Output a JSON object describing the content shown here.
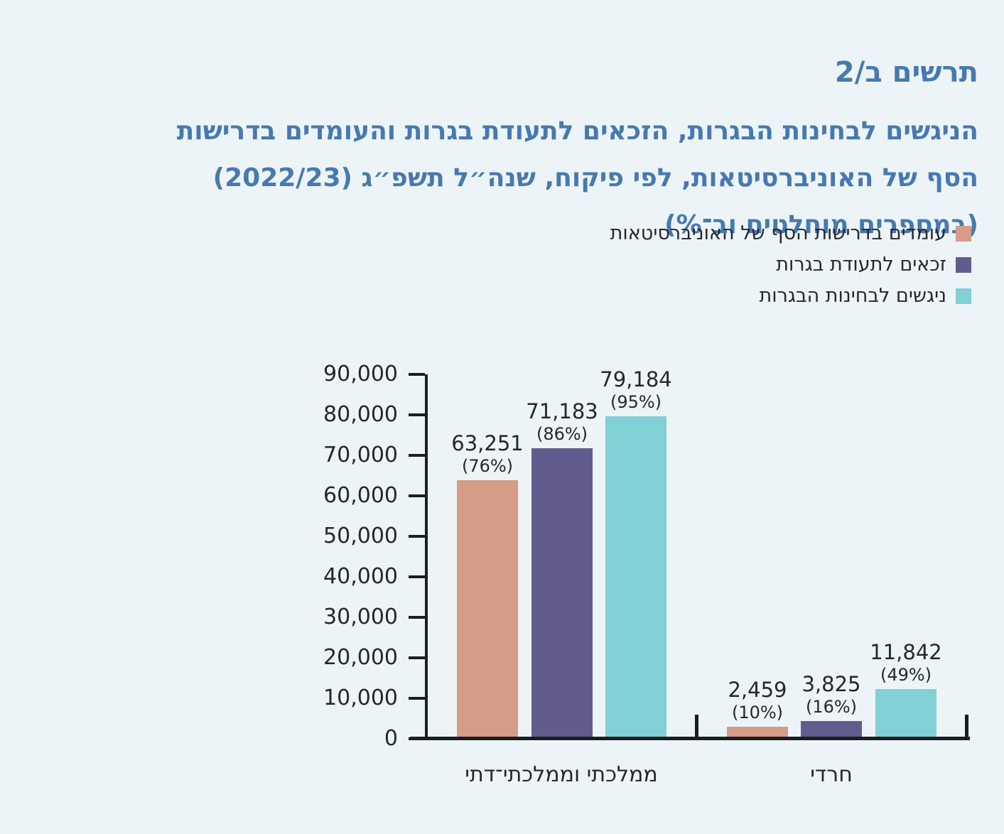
{
  "page": {
    "background_color": "#edf4f7",
    "accent_blue": "#4779b0",
    "text_dark": "#26262e",
    "axis_color": "#1b1d22"
  },
  "header": {
    "title": "תרשים ב/2",
    "subtitle_lines": [
      "הניגשים לבחינות הבגרות, הזכאים לתעודת בגרות והעומדים בדרישות",
      "הסף של האוניברסיטאות, לפי פיקוח, שנה״ל תשפ״ג (2022/23)",
      "(במספרים מוחלטים וב־%)"
    ]
  },
  "legend": [
    {
      "label": "עומדים בדרישות הסף של האוניברסיטאות",
      "color": "#d59c87"
    },
    {
      "label": "זכאים לתעודת בגרות",
      "color": "#625c8e"
    },
    {
      "label": "ניגשים לבחינות הבגרות",
      "color": "#81d0d5"
    }
  ],
  "chart_data": {
    "type": "bar",
    "direction": "rtl",
    "title": "תרשים ב/2",
    "subtitle": "הניגשים לבחינות הבגרות, הזכאים לתעודת בגרות והעומדים בדרישות הסף של האוניברסיטאות, לפי פיקוח, שנה״ל תשפ״ג (2022/23) (במספרים מוחלטים וב־%)",
    "categories": [
      "ממלכתי וממלכתי־דתי",
      "חרדי"
    ],
    "category_keys": [
      "state-and-state-religious",
      "haredi"
    ],
    "series": [
      {
        "key": "meeting-university-threshold",
        "name": "עומדים בדרישות הסף של האוניברסיטאות",
        "color": "#d59c87",
        "values": [
          63251,
          2459
        ],
        "value_labels": [
          "63,251",
          "2,459"
        ],
        "pct_labels": [
          "(76%)",
          "(10%)"
        ]
      },
      {
        "key": "entitled-to-certificate",
        "name": "זכאים לתעודת בגרות",
        "color": "#625c8e",
        "values": [
          71183,
          3825
        ],
        "value_labels": [
          "71,183",
          "3,825"
        ],
        "pct_labels": [
          "(86%)",
          "(16%)"
        ]
      },
      {
        "key": "taking-exams",
        "name": "ניגשים לבחינות הבגרות",
        "color": "#81d0d5",
        "values": [
          79184,
          11842
        ],
        "value_labels": [
          "79,184",
          "11,842"
        ],
        "pct_labels": [
          "(95%)",
          "(49%)"
        ]
      }
    ],
    "y_axis": {
      "min": 0,
      "max": 90000,
      "tick_step": 10000,
      "tick_labels": [
        "0",
        "10,000",
        "20,000",
        "30,000",
        "40,000",
        "50,000",
        "60,000",
        "70,000",
        "80,000",
        "90,000"
      ]
    },
    "legend_position": "top-right",
    "grid": false
  }
}
